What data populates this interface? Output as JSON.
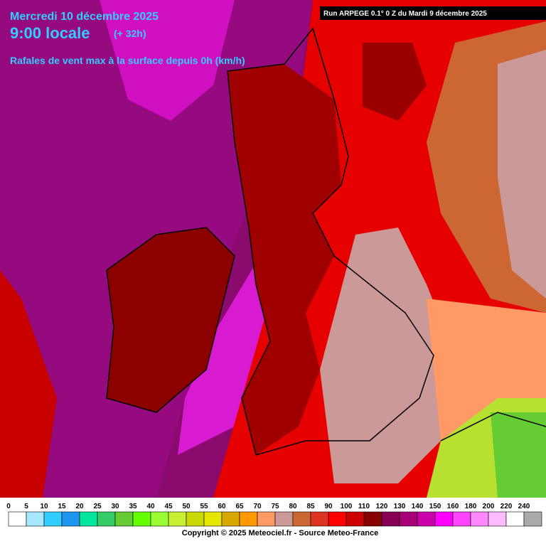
{
  "header": {
    "date": "Mercredi 10 décembre 2025",
    "time": "9:00 locale",
    "lead": "(+ 32h)",
    "subtitle": "Rafales de vent max à la surface depuis 0h (km/h)",
    "run": "Run ARPEGE 0.1° 0 Z du Mardi 9 décembre 2025"
  },
  "legend": {
    "values": [
      0,
      5,
      10,
      15,
      20,
      25,
      30,
      35,
      40,
      45,
      50,
      55,
      60,
      65,
      70,
      75,
      80,
      85,
      90,
      100,
      110,
      120,
      130,
      140,
      150,
      160,
      180,
      200,
      220,
      240
    ],
    "colors": [
      "#ffffff",
      "#a6e8ff",
      "#33ccff",
      "#1e96f0",
      "#00e6a0",
      "#33cc66",
      "#66cc33",
      "#66ff00",
      "#99ff33",
      "#c8f032",
      "#c8d800",
      "#e6e600",
      "#d8a800",
      "#ff9900",
      "#ff9966",
      "#cc9999",
      "#cc6633",
      "#dd3322",
      "#ff0000",
      "#cc0000",
      "#880000",
      "#880055",
      "#aa0077",
      "#cc00aa",
      "#ff00ff",
      "#ff44ff",
      "#ff88ff",
      "#ffbbff",
      "#ffffff",
      "#aaaaaa"
    ]
  },
  "footer": {
    "copyright": "Copyright © 2025 Meteociel.fr - Source Meteo-France"
  }
}
